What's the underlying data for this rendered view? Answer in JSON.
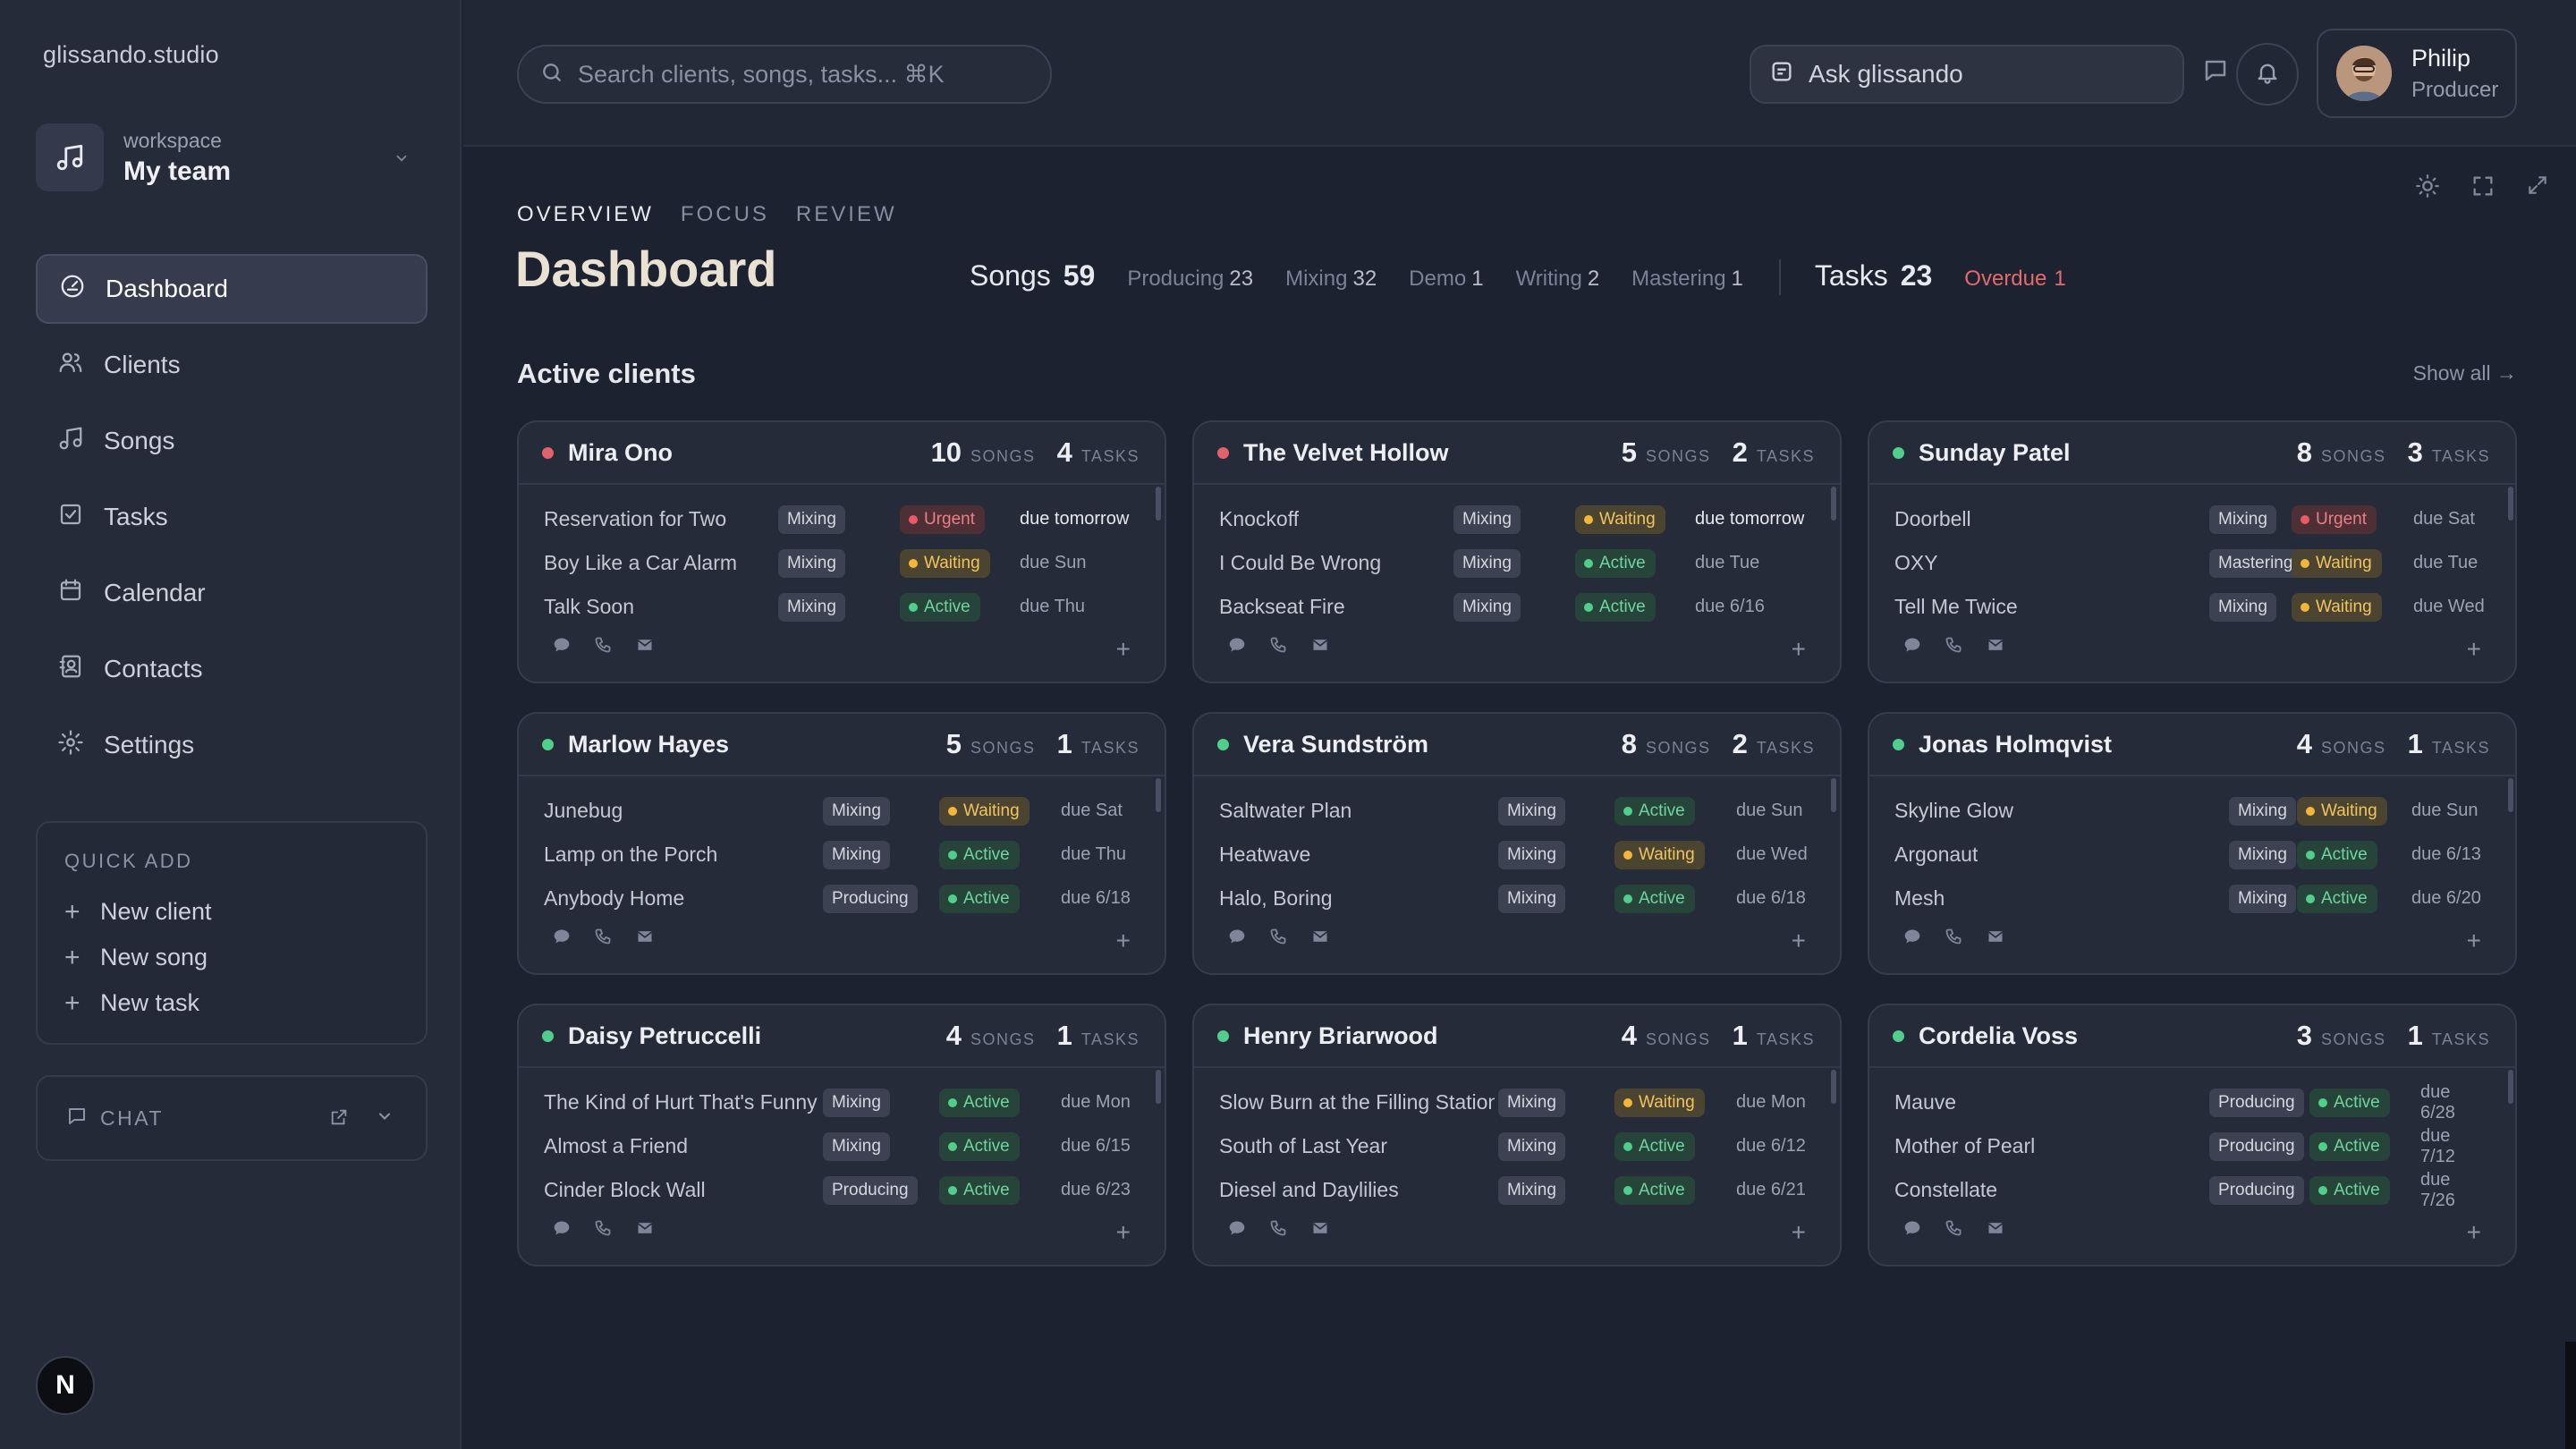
{
  "brand": "glissando.studio",
  "workspace": {
    "label": "workspace",
    "name": "My team"
  },
  "nav": [
    {
      "label": "Dashboard",
      "icon": "dashboard-icon",
      "active": true
    },
    {
      "label": "Clients",
      "icon": "users-icon"
    },
    {
      "label": "Songs",
      "icon": "music-note-icon"
    },
    {
      "label": "Tasks",
      "icon": "checkbox-icon"
    },
    {
      "label": "Calendar",
      "icon": "calendar-icon"
    },
    {
      "label": "Contacts",
      "icon": "contacts-icon"
    },
    {
      "label": "Settings",
      "icon": "gear-icon"
    }
  ],
  "quick_add": {
    "title": "QUICK ADD",
    "items": [
      "New client",
      "New song",
      "New task"
    ]
  },
  "chat": {
    "label": "CHAT"
  },
  "topbar": {
    "search_placeholder": "Search clients, songs, tasks... ⌘K",
    "ask_label": "Ask glissando",
    "user": {
      "name": "Philip",
      "role": "Producer"
    }
  },
  "view_tabs": [
    "OVERVIEW",
    "FOCUS",
    "REVIEW"
  ],
  "page_title": "Dashboard",
  "stats": {
    "songs_label": "Songs",
    "songs_value": "59",
    "breakdown": [
      {
        "label": "Producing",
        "value": "23"
      },
      {
        "label": "Mixing",
        "value": "32"
      },
      {
        "label": "Demo",
        "value": "1"
      },
      {
        "label": "Writing",
        "value": "2"
      },
      {
        "label": "Mastering",
        "value": "1"
      }
    ],
    "tasks_label": "Tasks",
    "tasks_value": "23",
    "overdue_label": "Overdue",
    "overdue_value": "1"
  },
  "section": {
    "title": "Active clients",
    "show_all": "Show all →"
  },
  "labels": {
    "songs": "SONGS",
    "tasks": "TASKS"
  },
  "colors": {
    "dot_green": "#4fce8c",
    "dot_red": "#e0626b",
    "active": "#4fce8c",
    "waiting": "#f2b73a",
    "urgent": "#ea5a64"
  },
  "clients": [
    {
      "name": "Mira Ono",
      "dot": "red",
      "songs": "10",
      "tasks": "4",
      "layout": "a",
      "rows": [
        {
          "title": "Reservation for Two",
          "stage": "Mixing",
          "status": "Urgent",
          "due": "due tomorrow",
          "bright": true
        },
        {
          "title": "Boy Like a Car Alarm",
          "stage": "Mixing",
          "status": "Waiting",
          "due": "due Sun"
        },
        {
          "title": "Talk Soon",
          "stage": "Mixing",
          "status": "Active",
          "due": "due Thu"
        }
      ]
    },
    {
      "name": "The Velvet Hollow",
      "dot": "red",
      "songs": "5",
      "tasks": "2",
      "layout": "a",
      "rows": [
        {
          "title": "Knockoff",
          "stage": "Mixing",
          "status": "Waiting",
          "due": "due tomorrow",
          "bright": true
        },
        {
          "title": "I Could Be Wrong",
          "stage": "Mixing",
          "status": "Active",
          "due": "due Tue"
        },
        {
          "title": "Backseat Fire",
          "stage": "Mixing",
          "status": "Active",
          "due": "due 6/16"
        }
      ]
    },
    {
      "name": "Sunday Patel",
      "dot": "green",
      "songs": "8",
      "tasks": "3",
      "layout": "c",
      "rows": [
        {
          "title": "Doorbell",
          "stage": "Mixing",
          "status": "Urgent",
          "due": "due Sat"
        },
        {
          "title": "OXY",
          "stage": "Mastering",
          "status": "Waiting",
          "due": "due Tue"
        },
        {
          "title": "Tell Me Twice",
          "stage": "Mixing",
          "status": "Waiting",
          "due": "due Wed"
        }
      ]
    },
    {
      "name": "Marlow Hayes",
      "dot": "green",
      "songs": "5",
      "tasks": "1",
      "layout": "b",
      "rows": [
        {
          "title": "Junebug",
          "stage": "Mixing",
          "status": "Waiting",
          "due": "due Sat"
        },
        {
          "title": "Lamp on the Porch",
          "stage": "Mixing",
          "status": "Active",
          "due": "due Thu"
        },
        {
          "title": "Anybody Home",
          "stage": "Producing",
          "status": "Active",
          "due": "due 6/18"
        }
      ]
    },
    {
      "name": "Vera Sundström",
      "dot": "green",
      "songs": "8",
      "tasks": "2",
      "layout": "b",
      "rows": [
        {
          "title": "Saltwater Plan",
          "stage": "Mixing",
          "status": "Active",
          "due": "due Sun"
        },
        {
          "title": "Heatwave",
          "stage": "Mixing",
          "status": "Waiting",
          "due": "due Wed"
        },
        {
          "title": "Halo, Boring",
          "stage": "Mixing",
          "status": "Active",
          "due": "due 6/18"
        }
      ]
    },
    {
      "name": "Jonas Holmqvist",
      "dot": "green",
      "songs": "4",
      "tasks": "1",
      "layout": "d",
      "rows": [
        {
          "title": "Skyline Glow",
          "stage": "Mixing",
          "status": "Waiting",
          "due": "due Sun"
        },
        {
          "title": "Argonaut",
          "stage": "Mixing",
          "status": "Active",
          "due": "due 6/13"
        },
        {
          "title": "Mesh",
          "stage": "Mixing",
          "status": "Active",
          "due": "due 6/20"
        }
      ]
    },
    {
      "name": "Daisy Petruccelli",
      "dot": "green",
      "songs": "4",
      "tasks": "1",
      "layout": "b",
      "rows": [
        {
          "title": "The Kind of Hurt That's Funny",
          "stage": "Mixing",
          "status": "Active",
          "due": "due Mon"
        },
        {
          "title": "Almost a Friend",
          "stage": "Mixing",
          "status": "Active",
          "due": "due 6/15"
        },
        {
          "title": "Cinder Block Wall",
          "stage": "Producing",
          "status": "Active",
          "due": "due 6/23"
        }
      ]
    },
    {
      "name": "Henry Briarwood",
      "dot": "green",
      "songs": "4",
      "tasks": "1",
      "layout": "b",
      "rows": [
        {
          "title": "Slow Burn at the Filling Station",
          "stage": "Mixing",
          "status": "Waiting",
          "due": "due Mon"
        },
        {
          "title": "South of Last Year",
          "stage": "Mixing",
          "status": "Active",
          "due": "due 6/12"
        },
        {
          "title": "Diesel and Daylilies",
          "stage": "Mixing",
          "status": "Active",
          "due": "due 6/21"
        }
      ]
    },
    {
      "name": "Cordelia Voss",
      "dot": "green",
      "songs": "3",
      "tasks": "1",
      "layout": "e",
      "rows": [
        {
          "title": "Mauve",
          "stage": "Producing",
          "status": "Active",
          "due": "due 6/28"
        },
        {
          "title": "Mother of Pearl",
          "stage": "Producing",
          "status": "Active",
          "due": "due 7/12"
        },
        {
          "title": "Constellate",
          "stage": "Producing",
          "status": "Active",
          "due": "due 7/26"
        }
      ]
    }
  ]
}
